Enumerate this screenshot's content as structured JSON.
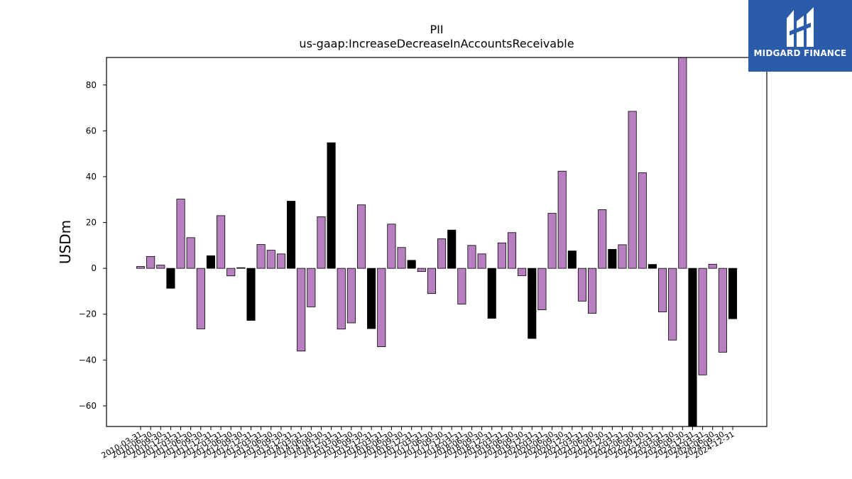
{
  "brand": {
    "name": "MIDGARD FINANCE",
    "color": "#2a5caa",
    "icon": "midgard-logo-icon"
  },
  "chart_data": {
    "type": "bar",
    "title": "PII",
    "subtitle": "us-gaap:IncreaseDecreaseInAccountsReceivable",
    "xlabel": "",
    "ylabel": "USDm",
    "ylim": [
      -69,
      92
    ],
    "yticks": [
      -60,
      -40,
      -20,
      0,
      20,
      40,
      60,
      80
    ],
    "grid": false,
    "colors": {
      "quarterly": "#b77fbf",
      "annual": "#000000"
    },
    "categories": [
      "2010-03-31",
      "2010-06-30",
      "2010-09-30",
      "2010-12-31",
      "2011-03-31",
      "2011-06-30",
      "2011-09-30",
      "2011-12-31",
      "2012-03-31",
      "2012-06-30",
      "2012-09-30",
      "2012-12-31",
      "2013-03-31",
      "2013-06-30",
      "2013-09-30",
      "2013-12-31",
      "2014-03-31",
      "2014-06-30",
      "2014-09-30",
      "2014-12-31",
      "2015-03-31",
      "2015-06-30",
      "2015-09-30",
      "2015-12-31",
      "2016-03-31",
      "2016-06-30",
      "2016-09-30",
      "2016-12-31",
      "2017-03-31",
      "2017-06-30",
      "2017-09-30",
      "2017-12-31",
      "2018-03-31",
      "2018-06-30",
      "2018-09-30",
      "2018-12-31",
      "2019-03-31",
      "2019-06-30",
      "2019-09-30",
      "2019-12-31",
      "2020-03-31",
      "2020-06-30",
      "2020-09-30",
      "2020-12-31",
      "2021-03-31",
      "2021-06-30",
      "2021-09-30",
      "2021-12-31",
      "2022-03-31",
      "2022-06-30",
      "2022-09-30",
      "2022-12-31",
      "2023-03-31",
      "2023-06-30",
      "2023-09-30",
      "2023-12-31",
      "2024-03-31",
      "2024-06-30",
      "2024-09-30",
      "2024-12-31"
    ],
    "values": [
      0.8,
      5.2,
      1.4,
      -8.7,
      30.2,
      13.4,
      -26.4,
      5.5,
      23.0,
      -3.3,
      0.3,
      -22.7,
      10.4,
      7.9,
      6.3,
      29.3,
      -36.1,
      -16.8,
      22.5,
      54.8,
      -26.5,
      -23.8,
      27.7,
      -26.3,
      -34.2,
      19.3,
      9.1,
      3.5,
      -1.4,
      -11.0,
      12.9,
      16.7,
      -15.6,
      10.0,
      6.3,
      -21.8,
      11.1,
      15.6,
      -3.2,
      -30.6,
      -18.1,
      24.0,
      42.4,
      7.6,
      -14.3,
      -19.6,
      25.6,
      8.3,
      10.3,
      68.5,
      41.7,
      1.7,
      -19.0,
      -31.3,
      92.0,
      -69.0,
      -46.5,
      1.8,
      -36.6,
      -22.0
    ],
    "annual": [
      false,
      false,
      false,
      true,
      false,
      false,
      false,
      true,
      false,
      false,
      false,
      true,
      false,
      false,
      false,
      true,
      false,
      false,
      false,
      true,
      false,
      false,
      false,
      true,
      false,
      false,
      false,
      true,
      false,
      false,
      false,
      true,
      false,
      false,
      false,
      true,
      false,
      false,
      false,
      true,
      false,
      false,
      false,
      true,
      false,
      false,
      false,
      true,
      false,
      false,
      false,
      true,
      false,
      false,
      false,
      true,
      false,
      false,
      false,
      true
    ]
  }
}
